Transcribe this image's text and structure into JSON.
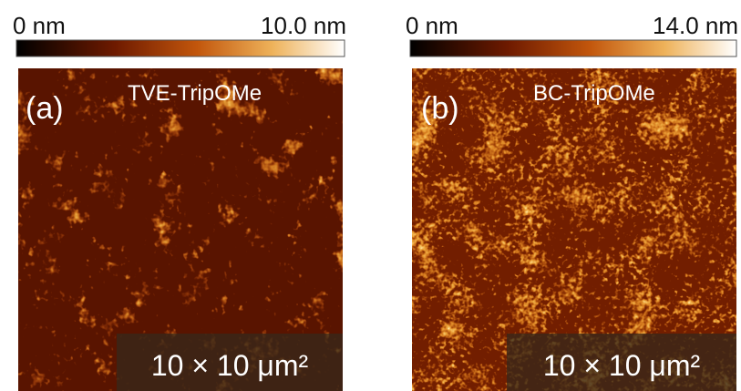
{
  "panels": [
    {
      "colorbar": {
        "min_label": "0 nm",
        "max_label": "10.0 nm"
      },
      "label": "(a)",
      "sample": "TVE-TripOMe",
      "scale": "10 × 10 μm²"
    },
    {
      "colorbar": {
        "min_label": "0 nm",
        "max_label": "14.0 nm"
      },
      "label": "(b)",
      "sample": "BC-TripOMe",
      "scale": "10 × 10 μm²"
    }
  ]
}
